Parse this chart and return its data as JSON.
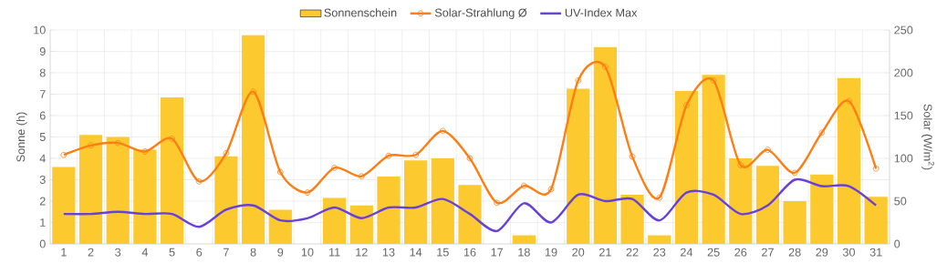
{
  "chart_data": {
    "type": "bar",
    "categories": [
      "1",
      "2",
      "3",
      "4",
      "5",
      "6",
      "7",
      "8",
      "9",
      "10",
      "11",
      "12",
      "13",
      "14",
      "15",
      "16",
      "17",
      "18",
      "19",
      "20",
      "21",
      "22",
      "23",
      "24",
      "25",
      "26",
      "27",
      "28",
      "29",
      "30",
      "31"
    ],
    "series": [
      {
        "name": "Sonnenschein",
        "color": "#fcc92f",
        "values": [
          3.6,
          5.1,
          5.0,
          4.4,
          6.85,
          0,
          4.1,
          9.75,
          1.6,
          0,
          2.15,
          1.8,
          3.15,
          3.9,
          4.0,
          2.75,
          0,
          0.4,
          0,
          7.25,
          9.2,
          2.3,
          0.4,
          7.15,
          7.9,
          4.0,
          3.65,
          2.0,
          3.25,
          7.75,
          2.2
        ]
      },
      {
        "name": "Solar-Strahlung Ø",
        "type": "line",
        "axis": "y2",
        "color": "#fd7e14",
        "marker": "circle",
        "values": [
          104,
          115,
          118,
          108,
          123,
          73,
          106,
          178,
          84,
          60,
          89,
          79,
          103,
          104,
          132,
          100,
          48,
          68,
          64,
          191,
          207,
          102,
          54,
          162,
          191,
          92,
          110,
          83,
          130,
          167,
          88
        ]
      },
      {
        "name": "UV-Index Max",
        "type": "line",
        "color": "#6741d9",
        "marker": "none",
        "values": [
          1.4,
          1.4,
          1.5,
          1.4,
          1.4,
          0.8,
          1.6,
          1.8,
          1.1,
          1.2,
          1.7,
          1.2,
          1.7,
          1.7,
          2.1,
          1.4,
          0.6,
          1.9,
          1.0,
          2.3,
          2.0,
          2.1,
          1.1,
          2.4,
          2.3,
          1.4,
          1.8,
          3.0,
          2.7,
          2.7,
          1.8
        ]
      }
    ],
    "ylabel": "Sonne (h)",
    "y2label": "Solar (W/m$^{2}$)",
    "ylim": [
      0,
      10
    ],
    "yticks": [
      0,
      1,
      2,
      3,
      4,
      5,
      6,
      7,
      8,
      9,
      10
    ],
    "y2lim": [
      0,
      250
    ],
    "y2ticks": [
      0,
      50,
      100,
      150,
      200,
      250
    ],
    "grid": true,
    "legend": "top"
  }
}
